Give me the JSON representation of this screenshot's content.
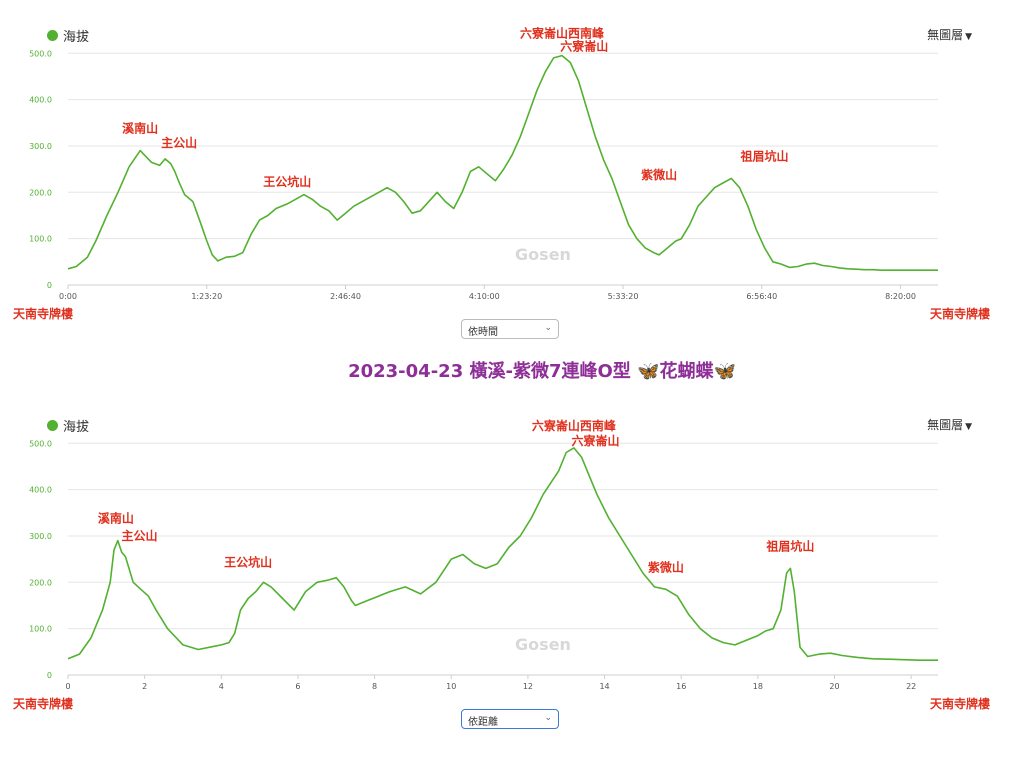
{
  "title": "2023-04-23 橫溪-紫微7連峰O型",
  "title_suffix": "花蝴蝶",
  "title_emoji": "🦋",
  "colors": {
    "line": "#52b130",
    "peak_label": "#e0301e",
    "title": "#8e2f97",
    "tick": "#52b130",
    "grid": "#e6e6e6"
  },
  "panels": [
    {
      "legend_label": "海拔",
      "layer_menu_label": "無圖層",
      "selector_label": "依時間",
      "selector_focused": false,
      "endpoint_left": "天南寺牌樓",
      "endpoint_right": "天南寺牌樓",
      "watermark": "Gosen"
    },
    {
      "legend_label": "海拔",
      "layer_menu_label": "無圖層",
      "selector_label": "依距離",
      "selector_focused": true,
      "endpoint_left": "天南寺牌樓",
      "endpoint_right": "天南寺牌樓",
      "watermark": "Gosen"
    }
  ],
  "chart_data": [
    {
      "type": "area",
      "x_unit": "time",
      "xlim": [
        0,
        31350
      ],
      "ylim": [
        0,
        520
      ],
      "yticks": [
        0,
        100,
        200,
        300,
        400,
        500
      ],
      "ytick_labels": [
        "0",
        "100.0",
        "200.0",
        "300.0",
        "400.0",
        "500.0"
      ],
      "xticks": [
        0,
        5000,
        10000,
        15000,
        20000,
        25000,
        30000
      ],
      "xtick_labels": [
        "0:00",
        "1:23:20",
        "2:46:40",
        "4:10:00",
        "5:33:20",
        "6:56:40",
        "8:20:00"
      ],
      "grid": true,
      "series": [
        {
          "x": [
            0,
            300,
            700,
            1000,
            1400,
            1800,
            2200,
            2600,
            3000,
            3300,
            3500,
            3700,
            3850,
            4000,
            4200,
            4500,
            4800,
            5000,
            5200,
            5400,
            5700,
            6000,
            6300,
            6600,
            6900,
            7200,
            7500,
            7900,
            8200,
            8500,
            8800,
            9100,
            9400,
            9700,
            10000,
            10300,
            10600,
            10900,
            11200,
            11500,
            11800,
            12100,
            12400,
            12700,
            13000,
            13300,
            13600,
            13900,
            14200,
            14500,
            14800,
            15100,
            15400,
            15700,
            16000,
            16300,
            16600,
            16900,
            17200,
            17500,
            17800,
            18100,
            18400,
            18700,
            19000,
            19300,
            19600,
            19900,
            20200,
            20500,
            20800,
            21100,
            21300,
            21500,
            21700,
            21900,
            22100,
            22400,
            22700,
            23000,
            23300,
            23600,
            23900,
            24200,
            24500,
            24800,
            25100,
            25400,
            25700,
            26000,
            26300,
            26600,
            26900,
            27200,
            27500,
            27800,
            28100,
            28400,
            28700,
            29000,
            29300,
            29600,
            29900,
            30200,
            30500,
            30800,
            31100,
            31350
          ],
          "y": [
            35,
            40,
            60,
            95,
            150,
            200,
            255,
            290,
            265,
            258,
            272,
            262,
            245,
            222,
            195,
            180,
            130,
            95,
            65,
            52,
            60,
            62,
            70,
            110,
            140,
            150,
            165,
            175,
            185,
            195,
            185,
            170,
            160,
            140,
            155,
            170,
            180,
            190,
            200,
            210,
            200,
            180,
            155,
            160,
            180,
            200,
            180,
            165,
            200,
            245,
            255,
            240,
            225,
            250,
            280,
            320,
            370,
            420,
            460,
            490,
            495,
            480,
            440,
            380,
            320,
            270,
            230,
            180,
            130,
            100,
            80,
            70,
            65,
            75,
            85,
            95,
            100,
            130,
            170,
            190,
            210,
            220,
            230,
            210,
            170,
            120,
            80,
            50,
            45,
            38,
            40,
            45,
            47,
            42,
            40,
            37,
            35,
            34,
            33,
            33,
            32,
            32,
            32,
            32,
            32,
            32,
            32,
            32
          ],
          "peaks": [
            {
              "name": "溪南山",
              "x": 2600,
              "y": 290
            },
            {
              "name": "主公山",
              "x": 3500,
              "y": 272
            },
            {
              "name": "王公坑山",
              "x": 7900,
              "y": 175
            },
            {
              "name": "六寮崙山西南峰",
              "x": 17800,
              "y": 495
            },
            {
              "name": "六寮崙山",
              "x": 18100,
              "y": 480
            },
            {
              "name": "紫微山",
              "x": 21300,
              "y": 190
            },
            {
              "name": "祖眉坑山",
              "x": 25100,
              "y": 230
            }
          ]
        }
      ]
    },
    {
      "type": "area",
      "x_unit": "km",
      "xlim": [
        0,
        22.7
      ],
      "ylim": [
        0,
        520
      ],
      "yticks": [
        0,
        100,
        200,
        300,
        400,
        500
      ],
      "ytick_labels": [
        "0",
        "100.0",
        "200.0",
        "300.0",
        "400.0",
        "500.0"
      ],
      "xticks": [
        0,
        2,
        4,
        6,
        8,
        10,
        12,
        14,
        16,
        18,
        20,
        22
      ],
      "xtick_labels": [
        "0",
        "2",
        "4",
        "6",
        "8",
        "10",
        "12",
        "14",
        "16",
        "18",
        "20",
        "22"
      ],
      "grid": true,
      "series": [
        {
          "x": [
            0,
            0.3,
            0.6,
            0.9,
            1.1,
            1.2,
            1.3,
            1.4,
            1.5,
            1.7,
            1.9,
            2.1,
            2.3,
            2.6,
            3.0,
            3.4,
            3.7,
            4.0,
            4.2,
            4.35,
            4.5,
            4.7,
            4.9,
            5.1,
            5.3,
            5.6,
            5.9,
            6.2,
            6.5,
            6.8,
            7.0,
            7.2,
            7.4,
            7.5,
            7.8,
            8.1,
            8.4,
            8.8,
            9.2,
            9.6,
            10.0,
            10.3,
            10.6,
            10.9,
            11.2,
            11.5,
            11.8,
            12.1,
            12.4,
            12.8,
            13.0,
            13.2,
            13.4,
            13.6,
            13.8,
            14.1,
            14.4,
            14.7,
            15.0,
            15.3,
            15.6,
            15.9,
            16.2,
            16.5,
            16.8,
            17.1,
            17.4,
            17.7,
            18.0,
            18.2,
            18.4,
            18.6,
            18.75,
            18.85,
            18.95,
            19.1,
            19.3,
            19.6,
            19.9,
            20.2,
            20.6,
            21.0,
            21.4,
            21.8,
            22.2,
            22.5,
            22.7
          ],
          "y": [
            35,
            45,
            80,
            140,
            200,
            270,
            290,
            265,
            255,
            200,
            185,
            170,
            140,
            100,
            65,
            55,
            60,
            65,
            70,
            90,
            140,
            165,
            180,
            200,
            190,
            165,
            140,
            180,
            200,
            205,
            210,
            190,
            160,
            150,
            160,
            170,
            180,
            190,
            175,
            200,
            250,
            260,
            240,
            230,
            240,
            275,
            300,
            340,
            390,
            440,
            480,
            490,
            470,
            430,
            390,
            340,
            300,
            260,
            220,
            190,
            185,
            170,
            130,
            100,
            80,
            70,
            65,
            75,
            85,
            95,
            100,
            140,
            220,
            230,
            180,
            60,
            40,
            45,
            47,
            42,
            38,
            35,
            34,
            33,
            32,
            32,
            32
          ],
          "peaks": [
            {
              "name": "溪南山",
              "x": 1.25,
              "y": 290
            },
            {
              "name": "主公山",
              "x": 1.5,
              "y": 265
            },
            {
              "name": "王公坑山",
              "x": 4.7,
              "y": 195
            },
            {
              "name": "六寮崙山西南峰",
              "x": 13.2,
              "y": 490
            },
            {
              "name": "六寮崙山",
              "x": 13.4,
              "y": 470
            },
            {
              "name": "紫微山",
              "x": 15.6,
              "y": 185
            },
            {
              "name": "祖眉坑山",
              "x": 18.85,
              "y": 230
            }
          ]
        }
      ]
    }
  ]
}
